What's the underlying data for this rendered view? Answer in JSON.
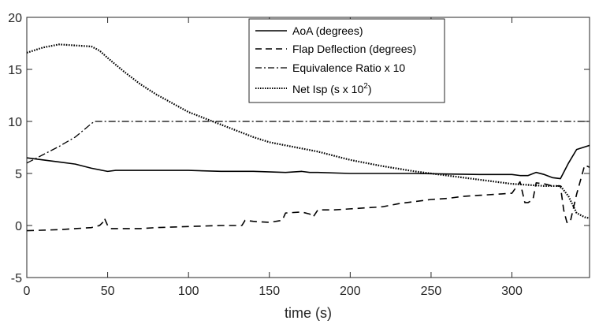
{
  "chart_data": {
    "type": "line",
    "title": "",
    "xlabel": "time (s)",
    "ylabel": "",
    "xlim": [
      0,
      348
    ],
    "ylim": [
      -5,
      20
    ],
    "xticks": [
      0,
      50,
      100,
      150,
      200,
      250,
      300
    ],
    "yticks": [
      -5,
      0,
      5,
      10,
      15,
      20
    ],
    "xtick_labels": [
      "0",
      "50",
      "100",
      "150",
      "200",
      "250",
      "300"
    ],
    "ytick_labels": [
      "-5",
      "0",
      "5",
      "10",
      "15",
      "20"
    ],
    "grid": false,
    "legend_position": "top-right",
    "series": [
      {
        "name": "AoA (degrees)",
        "style": "solid",
        "x": [
          0,
          10,
          20,
          30,
          40,
          50,
          55,
          60,
          70,
          80,
          90,
          100,
          120,
          140,
          160,
          170,
          175,
          180,
          200,
          220,
          240,
          260,
          280,
          300,
          305,
          310,
          315,
          320,
          325,
          330,
          335,
          340,
          348
        ],
        "y": [
          6.5,
          6.3,
          6.1,
          5.9,
          5.5,
          5.2,
          5.3,
          5.3,
          5.3,
          5.3,
          5.3,
          5.3,
          5.2,
          5.2,
          5.1,
          5.2,
          5.1,
          5.1,
          5.0,
          5.0,
          5.0,
          4.95,
          4.9,
          4.9,
          4.8,
          4.8,
          5.1,
          4.9,
          4.6,
          4.5,
          6.0,
          7.3,
          7.7
        ]
      },
      {
        "name": "Flap Deflection (degrees)",
        "style": "dashed",
        "x": [
          0,
          20,
          30,
          40,
          45,
          47,
          48,
          50,
          52,
          60,
          70,
          80,
          100,
          120,
          133,
          135,
          140,
          150,
          158,
          160,
          170,
          175,
          177,
          180,
          190,
          200,
          210,
          220,
          230,
          240,
          250,
          260,
          270,
          280,
          290,
          300,
          305,
          308,
          310,
          313,
          315,
          320,
          325,
          330,
          332,
          334,
          336,
          340,
          345,
          348
        ],
        "y": [
          -0.5,
          -0.4,
          -0.3,
          -0.2,
          0.0,
          0.3,
          0.7,
          0.0,
          -0.3,
          -0.3,
          -0.3,
          -0.2,
          -0.1,
          0.0,
          0.0,
          0.5,
          0.4,
          0.3,
          0.5,
          1.2,
          1.3,
          1.1,
          0.8,
          1.5,
          1.5,
          1.6,
          1.7,
          1.8,
          2.1,
          2.3,
          2.5,
          2.6,
          2.8,
          2.9,
          3.0,
          3.1,
          4.2,
          2.2,
          2.2,
          2.5,
          4.1,
          4.0,
          3.8,
          3.8,
          1.5,
          0.3,
          0.3,
          3.0,
          5.8,
          5.6
        ]
      },
      {
        "name": "Equivalence Ratio x 10",
        "style": "dashdot",
        "x": [
          0,
          10,
          20,
          30,
          40,
          42,
          100,
          200,
          300,
          348
        ],
        "y": [
          6.0,
          6.8,
          7.6,
          8.5,
          9.8,
          10.0,
          10.0,
          10.0,
          10.0,
          10.0
        ]
      },
      {
        "name": "Net Isp (s x 10^2)",
        "style": "dotted",
        "x": [
          0,
          10,
          20,
          30,
          40,
          45,
          50,
          60,
          70,
          80,
          100,
          120,
          140,
          150,
          160,
          180,
          200,
          220,
          240,
          260,
          280,
          300,
          320,
          330,
          335,
          340,
          345,
          348
        ],
        "y": [
          16.6,
          17.1,
          17.4,
          17.3,
          17.2,
          16.8,
          16.1,
          14.8,
          13.6,
          12.6,
          10.9,
          9.7,
          8.5,
          8.0,
          7.7,
          7.1,
          6.3,
          5.7,
          5.2,
          4.8,
          4.4,
          4.0,
          3.8,
          3.8,
          2.8,
          1.2,
          0.8,
          0.7
        ]
      }
    ],
    "legend": {
      "entries": [
        "AoA (degrees)",
        "Flap Deflection (degrees)",
        "Equivalence Ratio x 10",
        "Net Isp (s x 10"
      ],
      "superscript": "2",
      "suffix": ")"
    }
  }
}
